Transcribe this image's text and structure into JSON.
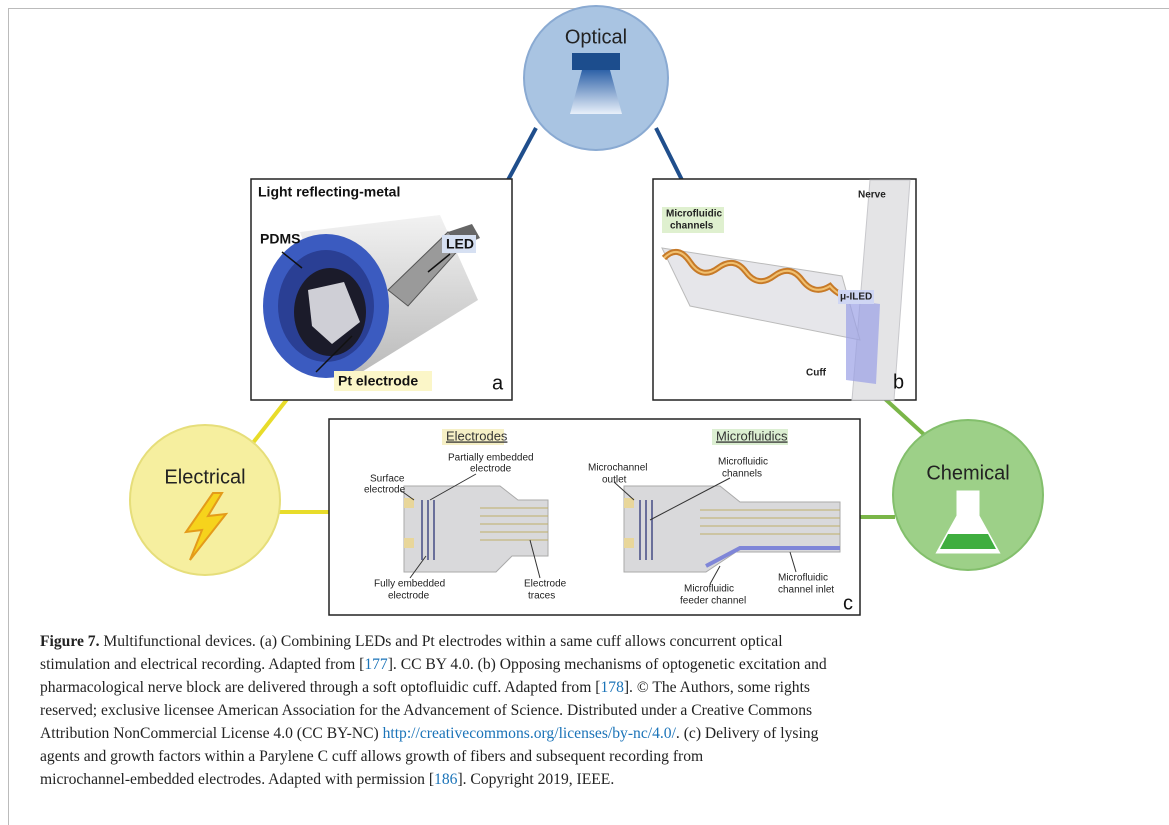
{
  "nodes": [
    {
      "label": "Optical"
    },
    {
      "label": "Electrical"
    },
    {
      "label": "Chemical"
    }
  ],
  "panels": [
    {
      "letter": "a",
      "labels": [
        [
          "Light reflecting-metal"
        ],
        [
          "PDMS"
        ],
        [
          "LED"
        ],
        [
          "Pt electrode"
        ]
      ]
    },
    {
      "letter": "b",
      "labels": [
        [
          "Nerve"
        ],
        [
          "Microfluidic",
          "channels"
        ],
        [
          "μ-ILED"
        ],
        [
          "Cuff"
        ]
      ]
    },
    {
      "letter": "c",
      "labels": [
        [
          "Electrodes"
        ],
        [
          "Microfluidics"
        ],
        [
          "Surface",
          "electrode"
        ],
        [
          "Partially embedded",
          "electrode"
        ],
        [
          "Fully embedded",
          "electrode"
        ],
        [
          "Electrode",
          "traces"
        ],
        [
          "Microchannel",
          "outlet"
        ],
        [
          "Microfluidic",
          "channels"
        ],
        [
          "Microfluidic",
          "feeder channel"
        ],
        [
          "Microfluidic",
          "channel inlet"
        ]
      ]
    }
  ],
  "caption": {
    "lines": [
      [
        {
          "text": "Figure 7.",
          "style": "bold"
        },
        {
          "text": " Multifunctional devices. (a) Combining LEDs and Pt electrodes within a same cuff allows concurrent optical"
        }
      ],
      [
        {
          "text": "stimulation and electrical recording. Adapted from ["
        },
        {
          "text": "177",
          "style": "link"
        },
        {
          "text": "]. CC BY 4.0. (b) Opposing mechanisms of optogenetic excitation and"
        }
      ],
      [
        {
          "text": "pharmacological nerve block are delivered through a soft optofluidic cuff. Adapted from ["
        },
        {
          "text": "178",
          "style": "link"
        },
        {
          "text": "]. © The Authors, some rights"
        }
      ],
      [
        {
          "text": "reserved; exclusive licensee American Association for the Advancement of Science. Distributed under a Creative Commons"
        }
      ],
      [
        {
          "text": "Attribution NonCommercial License 4.0 (CC BY-NC) "
        },
        {
          "text": "http://creativecommons.org/licenses/by-nc/4.0/",
          "style": "link"
        },
        {
          "text": ". (c) Delivery of lysing"
        }
      ],
      [
        {
          "text": "agents and growth factors within a Parylene C cuff allows growth of fibers and subsequent recording from"
        }
      ],
      [
        {
          "text": "microchannel-embedded electrodes. Adapted with permission ["
        },
        {
          "text": "186",
          "style": "link"
        },
        {
          "text": "]. Copyright 2019, IEEE."
        }
      ]
    ]
  }
}
